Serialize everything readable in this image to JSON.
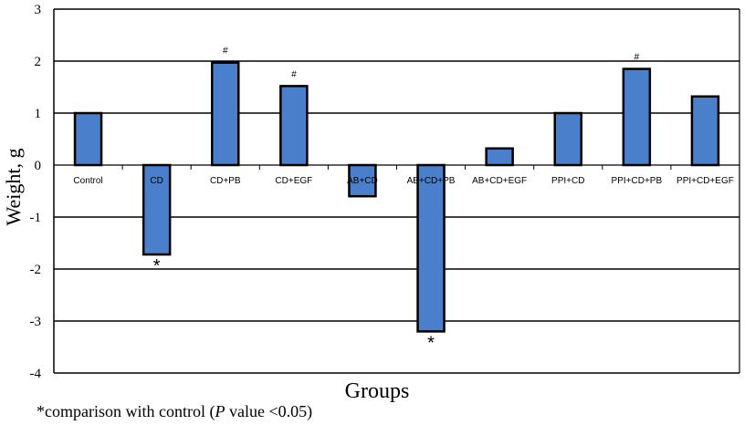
{
  "chart_data": {
    "type": "bar",
    "categories": [
      "Control",
      "CD",
      "CD+PB",
      "CD+EGF",
      "AB+CD",
      "AB+CD+PB",
      "AB+CD+EGF",
      "PPI+CD",
      "PPI+CD+PB",
      "PPI+CD+EGF"
    ],
    "values": [
      1.0,
      -1.72,
      1.97,
      1.52,
      -0.6,
      -3.2,
      0.32,
      1.0,
      1.85,
      1.32
    ],
    "markers": [
      "",
      "*",
      "#",
      "#",
      "",
      "*",
      "",
      "",
      "#",
      ""
    ],
    "xlabel": "Groups",
    "ylabel": "Weight, g",
    "ylim": [
      -4,
      3
    ],
    "yticks": [
      "3",
      "2",
      "1",
      "0",
      "-1",
      "-2",
      "-3",
      "-4"
    ],
    "grid": true,
    "bar_color": "#4a7fcc",
    "bar_edge_color": "#000000"
  },
  "footnote": {
    "prefix": "*comparison with control (",
    "italic": "P",
    "suffix": " value <0.05)"
  }
}
